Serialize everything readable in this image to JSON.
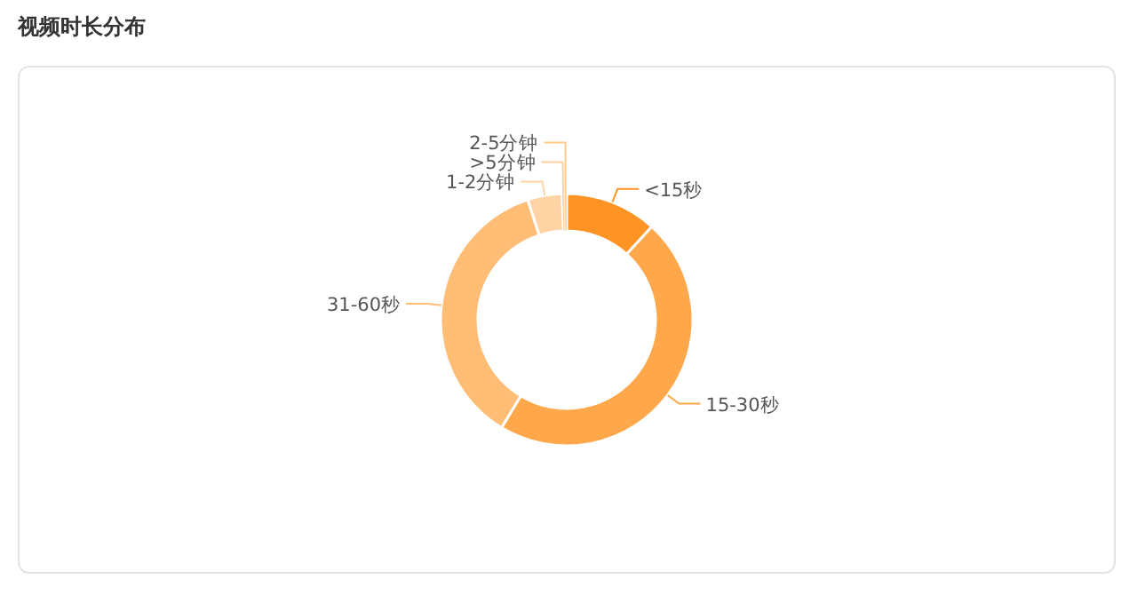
{
  "chart_data": {
    "type": "donut",
    "title": "视频时长分布",
    "categories": [
      "<15秒",
      "15-30秒",
      "31-60秒",
      "1-2分钟",
      ">5分钟",
      "2-5分钟"
    ],
    "values": [
      11.8,
      46.9,
      36.4,
      4.4,
      0.3,
      0.3
    ],
    "colors": [
      "#ff9324",
      "#ffa84b",
      "#ffbd76",
      "#ffd3a3",
      "#ffcf9c",
      "#ffc98e"
    ]
  }
}
